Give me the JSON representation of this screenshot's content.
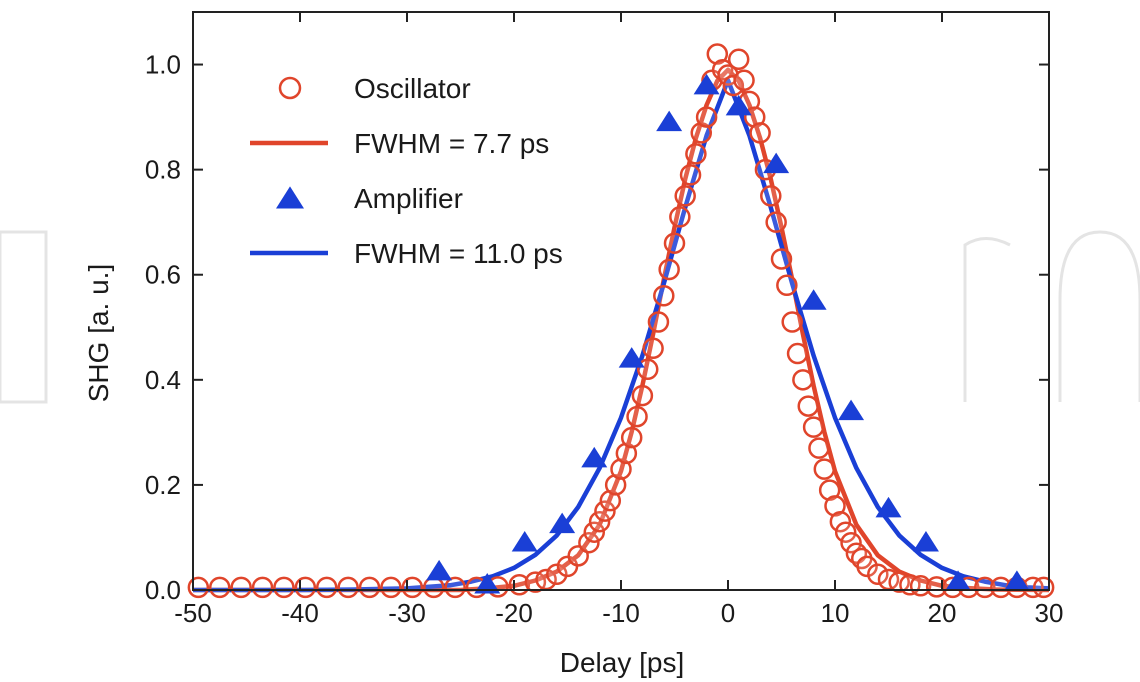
{
  "chart_data": {
    "type": "scatter",
    "xlabel": "Delay [ps]",
    "ylabel": "SHG [a. u.]",
    "xlim": [
      -50,
      30
    ],
    "ylim": [
      0,
      1.1
    ],
    "x_ticks": [
      -50,
      -40,
      -30,
      -20,
      -10,
      0,
      10,
      20,
      30
    ],
    "x_tick_labels": [
      "-50",
      "-40",
      "-30",
      "-20",
      "-10",
      "0",
      "10",
      "20",
      "30"
    ],
    "y_ticks": [
      0,
      0.2,
      0.4,
      0.6,
      0.8,
      1.0
    ],
    "y_tick_labels": [
      "0.0",
      "0.2",
      "0.4",
      "0.6",
      "0.8",
      "1.0"
    ],
    "grid": false,
    "legend_position": "top-left",
    "series": [
      {
        "name": "Oscillator",
        "kind": "marker",
        "marker": "open-circle",
        "color": "#e0452b",
        "x": [
          -49.5,
          -47.5,
          -45.5,
          -43.5,
          -41.5,
          -39.5,
          -37.5,
          -35.5,
          -33.5,
          -31.5,
          -29.5,
          -27.5,
          -25.5,
          -23.5,
          -21.5,
          -19.5,
          -18,
          -17,
          -16,
          -15,
          -14,
          -13,
          -12.5,
          -12,
          -11.5,
          -11,
          -10.5,
          -10,
          -9.5,
          -9,
          -8.5,
          -8,
          -7.5,
          -7,
          -6.5,
          -6,
          -5.5,
          -5,
          -4.5,
          -4,
          -3.5,
          -3,
          -2.5,
          -2,
          -1.5,
          -1,
          -0.5,
          0,
          0.5,
          1,
          1.5,
          2,
          2.5,
          3,
          3.5,
          4,
          4.5,
          5,
          5.5,
          6,
          6.5,
          7,
          7.5,
          8,
          8.5,
          9,
          9.5,
          10,
          10.5,
          11,
          11.5,
          12,
          12.5,
          13,
          14,
          15,
          16,
          17,
          18,
          19.5,
          21,
          22.5,
          24,
          25.5,
          27,
          28.5,
          29.5
        ],
        "y": [
          0.005,
          0.005,
          0.005,
          0.005,
          0.005,
          0.005,
          0.005,
          0.005,
          0.005,
          0.005,
          0.005,
          0.005,
          0.005,
          0.005,
          0.006,
          0.01,
          0.015,
          0.02,
          0.03,
          0.045,
          0.065,
          0.09,
          0.11,
          0.13,
          0.15,
          0.17,
          0.2,
          0.23,
          0.26,
          0.29,
          0.33,
          0.37,
          0.42,
          0.46,
          0.51,
          0.56,
          0.61,
          0.66,
          0.71,
          0.75,
          0.79,
          0.83,
          0.87,
          0.9,
          0.97,
          1.02,
          0.99,
          0.98,
          0.96,
          1.01,
          0.97,
          0.93,
          0.9,
          0.87,
          0.8,
          0.75,
          0.7,
          0.63,
          0.58,
          0.51,
          0.45,
          0.4,
          0.35,
          0.31,
          0.27,
          0.23,
          0.19,
          0.16,
          0.13,
          0.11,
          0.09,
          0.07,
          0.06,
          0.045,
          0.03,
          0.02,
          0.015,
          0.01,
          0.008,
          0.006,
          0.005,
          0.005,
          0.005,
          0.005,
          0.005,
          0.005,
          0.005
        ]
      },
      {
        "name": "FWHM = 7.7 ps",
        "kind": "line",
        "color": "#e0452b",
        "x": [
          -50,
          -45,
          -40,
          -35,
          -30,
          -25,
          -22,
          -20,
          -18,
          -16,
          -14,
          -12,
          -10,
          -9,
          -8,
          -7,
          -6,
          -5,
          -4,
          -3,
          -2,
          -1,
          0,
          1,
          2,
          3,
          4,
          5,
          6,
          7,
          8,
          9,
          10,
          12,
          14,
          16,
          18,
          20,
          22,
          25,
          30
        ],
        "y": [
          0,
          0,
          0,
          0,
          0,
          0,
          0.004,
          0.008,
          0.018,
          0.035,
          0.066,
          0.124,
          0.226,
          0.301,
          0.389,
          0.487,
          0.591,
          0.69,
          0.782,
          0.86,
          0.923,
          0.969,
          0.99,
          0.969,
          0.923,
          0.86,
          0.782,
          0.69,
          0.591,
          0.487,
          0.389,
          0.301,
          0.226,
          0.124,
          0.066,
          0.035,
          0.018,
          0.008,
          0.004,
          0.001,
          0
        ]
      },
      {
        "name": "Amplifier",
        "kind": "marker",
        "marker": "filled-triangle",
        "color": "#1a3fd6",
        "x": [
          -27,
          -22.5,
          -19,
          -15.5,
          -12.5,
          -9,
          -5.5,
          -2,
          1,
          4.5,
          8,
          11.5,
          15,
          18.5,
          21.5,
          27
        ],
        "y": [
          0.035,
          0.01,
          0.09,
          0.125,
          0.25,
          0.44,
          0.89,
          0.96,
          0.92,
          0.81,
          0.55,
          0.34,
          0.155,
          0.09,
          0.015,
          0.015
        ]
      },
      {
        "name": "FWHM = 11.0 ps",
        "kind": "line",
        "color": "#1a3fd6",
        "x": [
          -50,
          -40,
          -35,
          -30,
          -26,
          -24,
          -22,
          -20,
          -18,
          -16,
          -14,
          -12,
          -10,
          -8,
          -6,
          -4,
          -2,
          0,
          2,
          4,
          6,
          8,
          10,
          12,
          14,
          16,
          18,
          20,
          22,
          24,
          26,
          28,
          30
        ],
        "y": [
          0,
          0,
          0.001,
          0.003,
          0.009,
          0.016,
          0.026,
          0.042,
          0.067,
          0.104,
          0.158,
          0.232,
          0.328,
          0.446,
          0.583,
          0.728,
          0.865,
          0.97,
          0.865,
          0.728,
          0.583,
          0.446,
          0.328,
          0.232,
          0.158,
          0.104,
          0.067,
          0.042,
          0.026,
          0.016,
          0.009,
          0.005,
          0.003
        ]
      }
    ]
  }
}
